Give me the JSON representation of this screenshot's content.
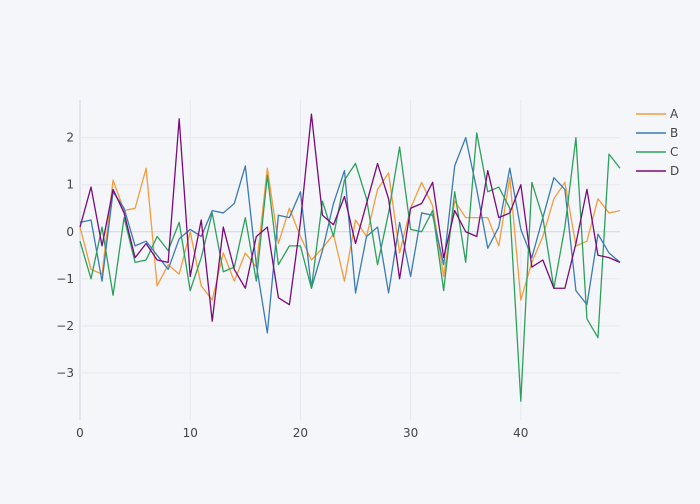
{
  "colors": {
    "paper_bg": "#f5f6fa",
    "plot_bg": "#f5f6fa",
    "grid": "#e6e8ef",
    "zeroline": "#cfd3dc",
    "axis_line": "#444444",
    "tick_text": "#444444"
  },
  "chart_data": {
    "type": "line",
    "title": "",
    "xlabel": "",
    "ylabel": "",
    "xlim": [
      0,
      49
    ],
    "ylim": [
      -4,
      2.8
    ],
    "x_ticks": [
      0,
      10,
      20,
      30,
      40
    ],
    "y_ticks": [
      -3,
      -2,
      -1,
      0,
      1,
      2
    ],
    "x_tick_labels": [
      "0",
      "10",
      "20",
      "30",
      "40"
    ],
    "y_tick_labels": [
      "−3",
      "−2",
      "−1",
      "0",
      "1",
      "2"
    ],
    "grid": true,
    "legend_position": "top-right",
    "series": [
      {
        "name": "A",
        "color": "#f39c3c",
        "values": [
          0.1,
          -0.8,
          -0.9,
          1.1,
          0.45,
          0.5,
          1.35,
          -1.15,
          -0.7,
          -0.9,
          0.0,
          -1.15,
          -1.45,
          -0.45,
          -1.05,
          -0.45,
          -0.75,
          1.35,
          -0.25,
          0.5,
          -0.1,
          -0.6,
          -0.35,
          -0.05,
          -1.05,
          0.25,
          -0.1,
          0.9,
          1.25,
          -0.45,
          0.5,
          1.05,
          0.55,
          -0.95,
          0.65,
          0.3,
          0.3,
          0.3,
          -0.3,
          1.15,
          -1.45,
          -0.65,
          -0.1,
          0.7,
          1.05,
          -0.3,
          -0.2,
          0.7,
          0.4,
          0.45
        ]
      },
      {
        "name": "B",
        "color": "#3a7ab5",
        "values": [
          0.2,
          0.25,
          -1.05,
          0.85,
          0.5,
          -0.3,
          -0.2,
          -0.5,
          -0.8,
          -0.15,
          0.05,
          -0.1,
          0.45,
          0.4,
          0.6,
          1.4,
          -0.7,
          -2.15,
          0.35,
          0.3,
          0.85,
          -1.2,
          -0.4,
          0.6,
          1.3,
          -1.3,
          -0.1,
          0.1,
          -1.3,
          0.2,
          -0.95,
          0.4,
          0.35,
          -0.7,
          1.4,
          2.0,
          0.9,
          -0.35,
          0.1,
          1.35,
          0.05,
          -0.55,
          0.3,
          1.15,
          0.9,
          -1.25,
          -1.55,
          -0.05,
          -0.45,
          -0.65
        ]
      },
      {
        "name": "C",
        "color": "#2ca05a",
        "values": [
          -0.2,
          -1.0,
          0.1,
          -1.35,
          0.3,
          -0.65,
          -0.6,
          -0.1,
          -0.4,
          0.2,
          -1.25,
          -0.55,
          0.4,
          -0.85,
          -0.75,
          0.3,
          -1.05,
          1.2,
          -0.7,
          -0.3,
          -0.3,
          -1.2,
          0.65,
          -0.1,
          1.1,
          1.45,
          0.7,
          -0.7,
          0.4,
          1.8,
          0.05,
          0.0,
          0.45,
          -1.25,
          0.85,
          -0.65,
          2.1,
          0.85,
          0.95,
          0.5,
          -3.6,
          1.05,
          0.3,
          -1.2,
          0.1,
          2.0,
          -1.85,
          -2.25,
          1.65,
          1.35
        ]
      },
      {
        "name": "D",
        "color": "#7a0a7a",
        "values": [
          0.1,
          0.95,
          -0.3,
          0.9,
          0.4,
          -0.55,
          -0.25,
          -0.6,
          -0.65,
          2.4,
          -0.95,
          0.25,
          -1.9,
          0.1,
          -0.8,
          -1.2,
          -0.1,
          0.1,
          -1.4,
          -1.55,
          0.2,
          2.5,
          0.35,
          0.15,
          0.75,
          -0.25,
          0.6,
          1.45,
          0.7,
          -1.0,
          0.5,
          0.6,
          1.05,
          -0.55,
          0.45,
          0.0,
          -0.1,
          1.3,
          0.3,
          0.4,
          1.0,
          -0.75,
          -0.6,
          -1.2,
          -1.2,
          -0.25,
          0.9,
          -0.5,
          -0.55,
          -0.65
        ]
      }
    ]
  }
}
